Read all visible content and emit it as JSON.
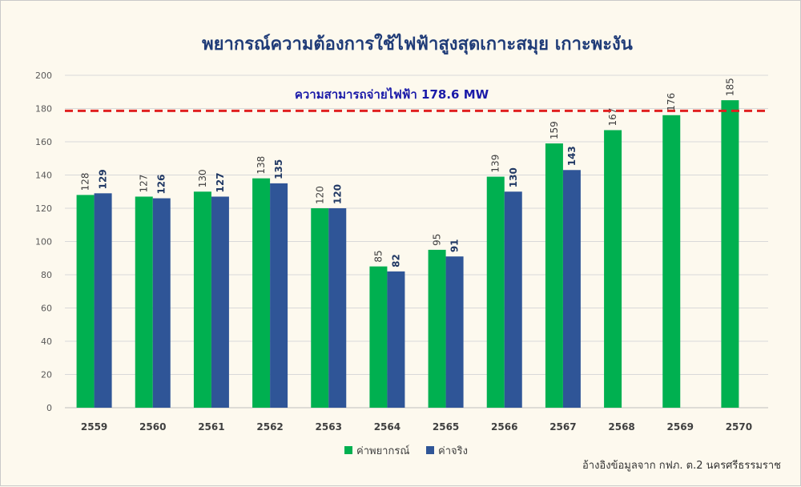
{
  "chart_data": {
    "type": "bar",
    "title": "พยากรณ์ความต้องการใช้ไฟฟ้าสูงสุดเกาะสมุย เกาะพะงัน",
    "categories": [
      "2559",
      "2560",
      "2561",
      "2562",
      "2563",
      "2564",
      "2565",
      "2566",
      "2567",
      "2568",
      "2569",
      "2570"
    ],
    "series": [
      {
        "name": "ค่าพยากรณ์",
        "color": "#00b050",
        "values": [
          128,
          127,
          130,
          138,
          120,
          85,
          95,
          139,
          159,
          167,
          176,
          185
        ]
      },
      {
        "name": "ค่าจริง",
        "color": "#2f5597",
        "values": [
          129,
          126,
          127,
          135,
          120,
          82,
          91,
          130,
          143,
          null,
          null,
          null
        ]
      }
    ],
    "ylim": [
      0,
      200
    ],
    "yticks": [
      0,
      20,
      40,
      60,
      80,
      100,
      120,
      140,
      160,
      180,
      200
    ],
    "grid": true,
    "legend_position": "bottom",
    "reference_line": {
      "value": 178.6,
      "label": "ความสามารถจ่ายไฟฟ้า 178.6 MW",
      "color": "#e02020"
    },
    "source_note": "อ้างอิงข้อมูลจาก กฟภ. ต.2 นครศรีธรรมราช"
  }
}
